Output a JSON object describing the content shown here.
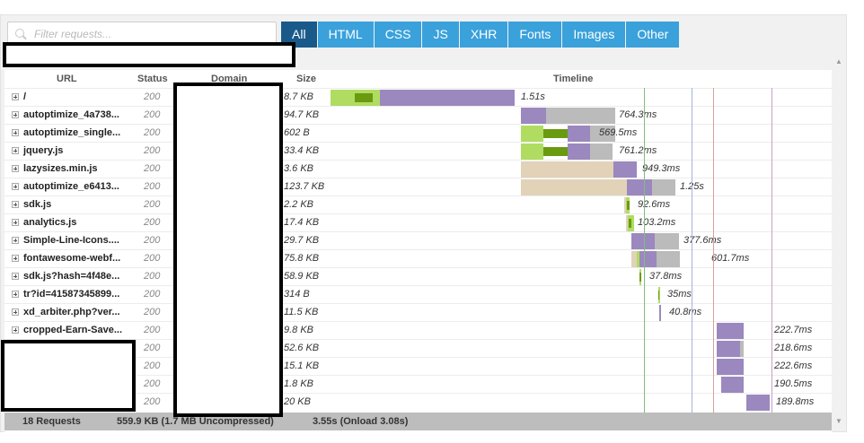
{
  "filter": {
    "placeholder": "Filter requests..."
  },
  "type_tabs": [
    "All",
    "HTML",
    "CSS",
    "JS",
    "XHR",
    "Fonts",
    "Images",
    "Other"
  ],
  "active_tab": "All",
  "columns": {
    "url": "URL",
    "status": "Status",
    "domain": "Domain",
    "size": "Size",
    "timeline": "Timeline"
  },
  "colors": {
    "active_tab": "#1a5a8a",
    "tab": "#3aa1db",
    "dns": "#e1d2b8",
    "connect": "#b0dc62",
    "blocking": "#6a9a10",
    "waiting": "#9b88be",
    "receiving": "#bbbbbb",
    "dom_line": "#7fbf7f",
    "content_line": "#9fb7d8",
    "onload_line": "#d89f9f"
  },
  "requests": [
    {
      "url": "/",
      "status": "200",
      "size": "8.7 KB",
      "time": "1.51s"
    },
    {
      "url": "autoptimize_4a738...",
      "status": "200",
      "size": "94.7 KB",
      "time": "764.3ms"
    },
    {
      "url": "autoptimize_single...",
      "status": "200",
      "size": "602 B",
      "time": "569.5ms"
    },
    {
      "url": "jquery.js",
      "status": "200",
      "size": "33.4 KB",
      "time": "761.2ms"
    },
    {
      "url": "lazysizes.min.js",
      "status": "200",
      "size": "3.6 KB",
      "time": "949.3ms"
    },
    {
      "url": "autoptimize_e6413...",
      "status": "200",
      "size": "123.7 KB",
      "time": "1.25s"
    },
    {
      "url": "sdk.js",
      "status": "200",
      "size": "2.2 KB",
      "time": "92.6ms"
    },
    {
      "url": "analytics.js",
      "status": "200",
      "size": "17.4 KB",
      "time": "103.2ms"
    },
    {
      "url": "Simple-Line-Icons....",
      "status": "200",
      "size": "29.7 KB",
      "time": "377.6ms"
    },
    {
      "url": "fontawesome-webf...",
      "status": "200",
      "size": "75.8 KB",
      "time": "601.7ms"
    },
    {
      "url": "sdk.js?hash=4f48e...",
      "status": "200",
      "size": "58.9 KB",
      "time": "37.8ms"
    },
    {
      "url": "tr?id=41587345899...",
      "status": "200",
      "size": "314 B",
      "time": "35ms"
    },
    {
      "url": "xd_arbiter.php?ver...",
      "status": "200",
      "size": "11.5 KB",
      "time": "40.8ms"
    },
    {
      "url": "cropped-Earn-Save...",
      "status": "200",
      "size": "9.8 KB",
      "time": "222.7ms"
    },
    {
      "url": "",
      "status": "200",
      "size": "52.6 KB",
      "time": "218.6ms"
    },
    {
      "url": "",
      "status": "200",
      "size": "15.1 KB",
      "time": "222.6ms"
    },
    {
      "url": "",
      "status": "200",
      "size": "1.8 KB",
      "time": "190.5ms"
    },
    {
      "url": "",
      "status": "200",
      "size": "20 KB",
      "time": "189.8ms"
    }
  ],
  "footer": {
    "requests": "18 Requests",
    "size": "559.9 KB (1.7 MB Uncompressed)",
    "time": "3.55s (Onload 3.08s)"
  }
}
